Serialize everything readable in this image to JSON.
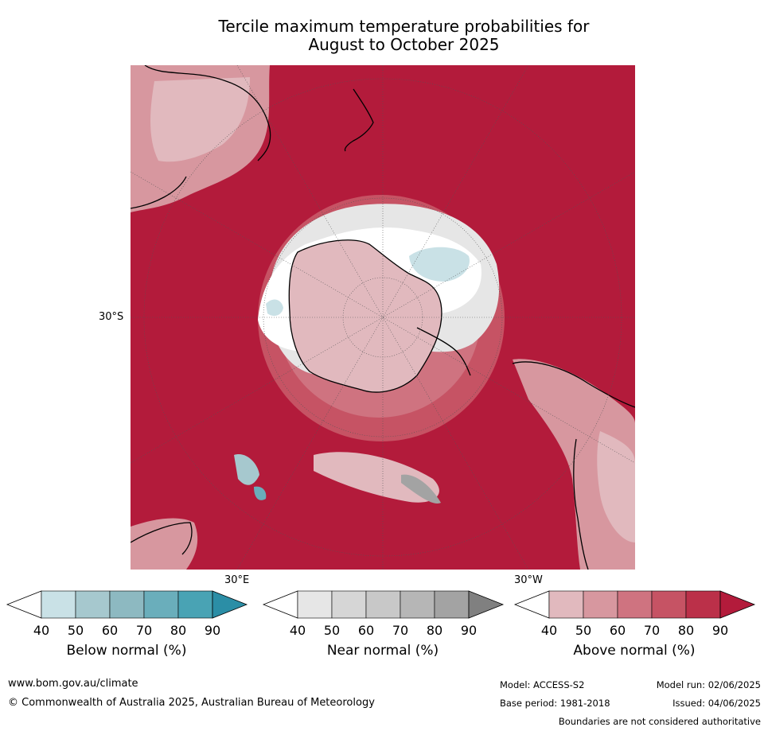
{
  "title": {
    "line1": "Tercile maximum temperature probabilities for",
    "line2": "August to October 2025"
  },
  "map": {
    "lat_label": "30°S",
    "lon_labels": {
      "east": "30°E",
      "west": "30°W"
    },
    "colors": {
      "ocean_warm": "#b31b3b",
      "above_70": "#c65364",
      "above_60": "#cf7380",
      "above_50": "#d7979f",
      "above_40": "#e1b9be",
      "normal_50": "#e6e6e6",
      "normal_80": "#a3a3a3",
      "below_50": "#c9e1e6",
      "below_60": "#a6c8ce",
      "below_70": "#8db9c1",
      "below_80": "#6aaebb",
      "coast": "#000000"
    }
  },
  "colorbars": [
    {
      "title": "Below normal (%)",
      "ticks": [
        "40",
        "50",
        "60",
        "70",
        "80",
        "90"
      ],
      "colors": [
        "#ffffff",
        "#c9e1e6",
        "#a6c8ce",
        "#8db9c1",
        "#6aaebb",
        "#49a3b4",
        "#2b8ea6"
      ]
    },
    {
      "title": "Near normal (%)",
      "ticks": [
        "40",
        "50",
        "60",
        "70",
        "80",
        "90"
      ],
      "colors": [
        "#ffffff",
        "#e6e6e6",
        "#d6d6d6",
        "#c8c8c8",
        "#b6b6b6",
        "#a3a3a3",
        "#808080"
      ]
    },
    {
      "title": "Above normal (%)",
      "ticks": [
        "40",
        "50",
        "60",
        "70",
        "80",
        "90"
      ],
      "colors": [
        "#ffffff",
        "#e1b9be",
        "#d7979f",
        "#cf7380",
        "#c65364",
        "#bb3049",
        "#b31b3b"
      ]
    }
  ],
  "footer": {
    "url": "www.bom.gov.au/climate",
    "copyright": "© Commonwealth of Australia 2025, Australian Bureau of Meteorology",
    "model": "Model: ACCESS-S2",
    "model_run": "Model run: 02/06/2025",
    "base_period": "Base period: 1981-2018",
    "issued": "Issued: 04/06/2025",
    "disclaimer": "Boundaries are not considered authoritative"
  }
}
